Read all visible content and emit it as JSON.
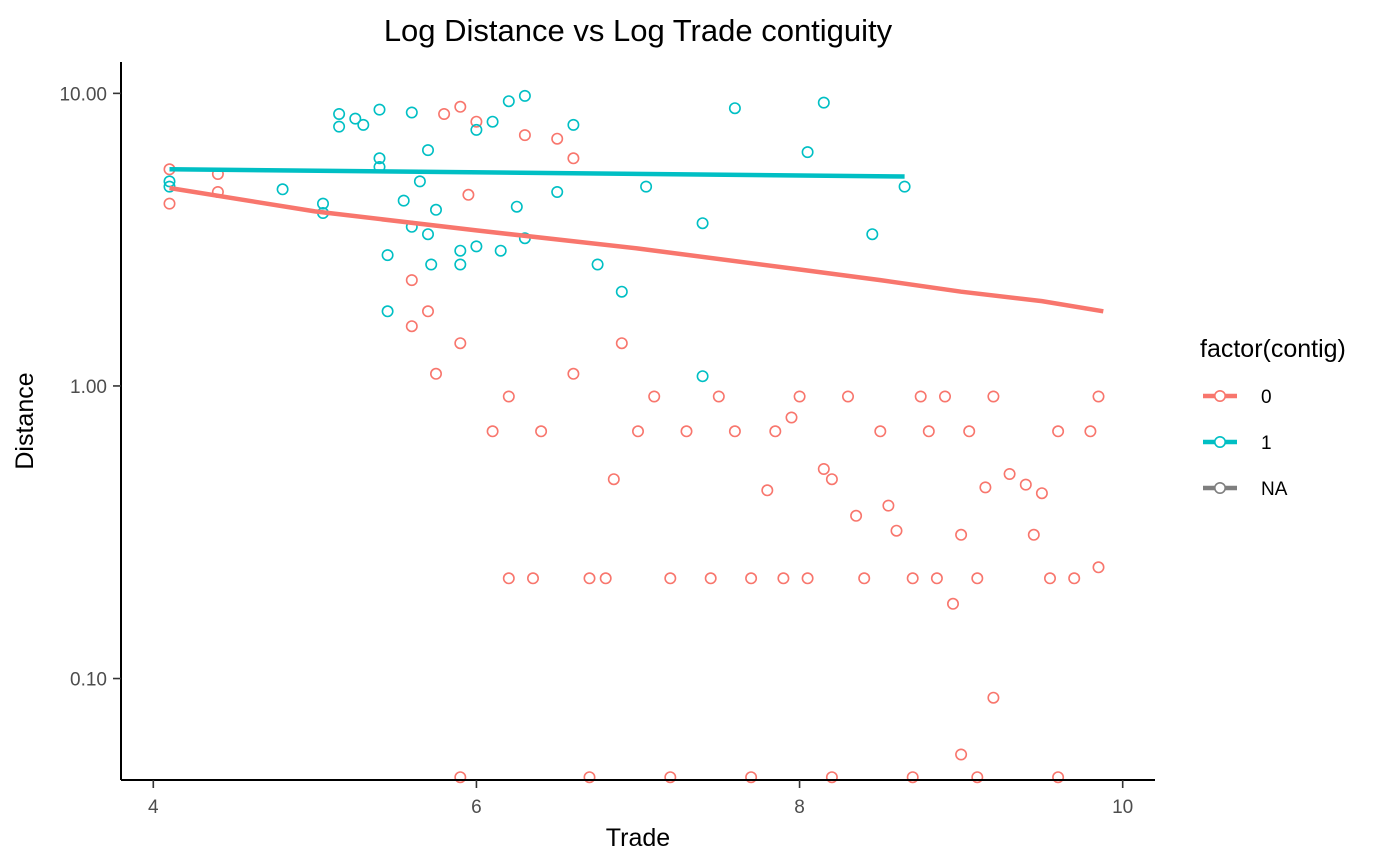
{
  "chart_data": {
    "type": "scatter",
    "title": "Log Distance vs Log Trade contiguity",
    "xlabel": "Trade",
    "ylabel": "Distance",
    "xlim": [
      3.8,
      10.2
    ],
    "ylim": [
      0.045,
      12.8
    ],
    "y_scale": "log",
    "x_ticks": [
      4,
      6,
      8,
      10
    ],
    "x_tick_labels": [
      "4",
      "6",
      "8",
      "10"
    ],
    "y_ticks": [
      0.1,
      1,
      10
    ],
    "y_tick_labels": [
      "0.10",
      "1.00",
      "10.00"
    ],
    "grid": false,
    "legend": {
      "title": "factor(contig)",
      "position": "right",
      "entries": [
        {
          "label": "0",
          "color": "#F8766D"
        },
        {
          "label": "1",
          "color": "#00BFC4"
        },
        {
          "label": "NA",
          "color": "#7F7F7F"
        }
      ]
    },
    "series": [
      {
        "name": "0",
        "color": "#F8766D",
        "points": [
          [
            4.1,
            5.5
          ],
          [
            4.1,
            4.2
          ],
          [
            4.4,
            5.3
          ],
          [
            4.4,
            4.6
          ],
          [
            5.6,
            2.3
          ],
          [
            5.6,
            1.6
          ],
          [
            5.7,
            1.8
          ],
          [
            5.75,
            1.1
          ],
          [
            5.8,
            8.5
          ],
          [
            5.9,
            9.0
          ],
          [
            5.9,
            1.4
          ],
          [
            5.95,
            4.5
          ],
          [
            6.0,
            8.0
          ],
          [
            6.1,
            0.7
          ],
          [
            6.2,
            0.92
          ],
          [
            6.2,
            0.22
          ],
          [
            6.3,
            7.2
          ],
          [
            6.35,
            0.22
          ],
          [
            6.4,
            0.7
          ],
          [
            6.5,
            7.0
          ],
          [
            6.6,
            6.0
          ],
          [
            6.6,
            1.1
          ],
          [
            6.7,
            0.22
          ],
          [
            6.8,
            0.22
          ],
          [
            6.85,
            0.48
          ],
          [
            6.9,
            1.4
          ],
          [
            7.0,
            0.7
          ],
          [
            7.1,
            0.92
          ],
          [
            7.2,
            0.22
          ],
          [
            7.3,
            0.7
          ],
          [
            7.45,
            0.22
          ],
          [
            7.5,
            0.92
          ],
          [
            7.6,
            0.7
          ],
          [
            7.7,
            0.22
          ],
          [
            7.8,
            0.44
          ],
          [
            7.85,
            0.7
          ],
          [
            7.9,
            0.22
          ],
          [
            7.95,
            0.78
          ],
          [
            8.0,
            0.92
          ],
          [
            8.05,
            0.22
          ],
          [
            8.15,
            0.52
          ],
          [
            8.2,
            0.48
          ],
          [
            8.3,
            0.92
          ],
          [
            8.35,
            0.36
          ],
          [
            8.4,
            0.22
          ],
          [
            8.5,
            0.7
          ],
          [
            8.55,
            0.39
          ],
          [
            8.6,
            0.32
          ],
          [
            8.7,
            0.22
          ],
          [
            8.75,
            0.92
          ],
          [
            8.8,
            0.7
          ],
          [
            8.85,
            0.22
          ],
          [
            8.9,
            0.92
          ],
          [
            8.95,
            0.18
          ],
          [
            9.0,
            0.31
          ],
          [
            9.0,
            0.055
          ],
          [
            9.05,
            0.7
          ],
          [
            9.1,
            0.22
          ],
          [
            9.15,
            0.45
          ],
          [
            9.2,
            0.086
          ],
          [
            9.2,
            0.92
          ],
          [
            9.3,
            0.5
          ],
          [
            9.4,
            0.46
          ],
          [
            9.45,
            0.31
          ],
          [
            9.5,
            0.43
          ],
          [
            9.55,
            0.22
          ],
          [
            9.6,
            0.7
          ],
          [
            9.7,
            0.22
          ],
          [
            9.8,
            0.7
          ],
          [
            9.85,
            0.24
          ],
          [
            9.85,
            0.92
          ],
          [
            5.9,
            0.046
          ],
          [
            6.7,
            0.046
          ],
          [
            7.2,
            0.046
          ],
          [
            7.7,
            0.046
          ],
          [
            8.2,
            0.046
          ],
          [
            8.7,
            0.046
          ],
          [
            9.1,
            0.046
          ],
          [
            9.6,
            0.046
          ]
        ]
      },
      {
        "name": "1",
        "color": "#00BFC4",
        "points": [
          [
            4.1,
            5.0
          ],
          [
            4.1,
            4.8
          ],
          [
            4.8,
            4.7
          ],
          [
            5.05,
            4.2
          ],
          [
            5.05,
            3.9
          ],
          [
            5.15,
            8.5
          ],
          [
            5.15,
            7.7
          ],
          [
            5.25,
            8.2
          ],
          [
            5.3,
            7.8
          ],
          [
            5.4,
            8.8
          ],
          [
            5.4,
            6.0
          ],
          [
            5.4,
            5.6
          ],
          [
            5.45,
            2.8
          ],
          [
            5.45,
            1.8
          ],
          [
            5.55,
            4.3
          ],
          [
            5.6,
            3.5
          ],
          [
            5.6,
            8.6
          ],
          [
            5.65,
            5.0
          ],
          [
            5.7,
            6.4
          ],
          [
            5.7,
            3.3
          ],
          [
            5.72,
            2.6
          ],
          [
            5.75,
            4.0
          ],
          [
            5.9,
            2.9
          ],
          [
            5.9,
            2.6
          ],
          [
            6.0,
            7.5
          ],
          [
            6.0,
            3.0
          ],
          [
            6.1,
            8.0
          ],
          [
            6.15,
            2.9
          ],
          [
            6.2,
            9.4
          ],
          [
            6.25,
            4.1
          ],
          [
            6.3,
            3.2
          ],
          [
            6.3,
            9.8
          ],
          [
            6.5,
            4.6
          ],
          [
            6.6,
            7.8
          ],
          [
            6.75,
            2.6
          ],
          [
            6.9,
            2.1
          ],
          [
            7.05,
            4.8
          ],
          [
            7.4,
            3.6
          ],
          [
            7.4,
            1.08
          ],
          [
            7.6,
            8.9
          ],
          [
            8.05,
            6.3
          ],
          [
            8.15,
            9.3
          ],
          [
            8.45,
            3.3
          ],
          [
            8.65,
            4.8
          ]
        ]
      }
    ],
    "lines": [
      {
        "name": "0",
        "color": "#F8766D",
        "x": [
          4.1,
          5.0,
          6.0,
          7.0,
          8.0,
          8.5,
          9.0,
          9.5,
          9.88
        ],
        "y": [
          4.75,
          3.95,
          3.4,
          2.95,
          2.5,
          2.3,
          2.1,
          1.95,
          1.8
        ]
      },
      {
        "name": "1",
        "color": "#00BFC4",
        "x": [
          4.1,
          8.65
        ],
        "y": [
          5.5,
          5.2
        ]
      }
    ]
  }
}
